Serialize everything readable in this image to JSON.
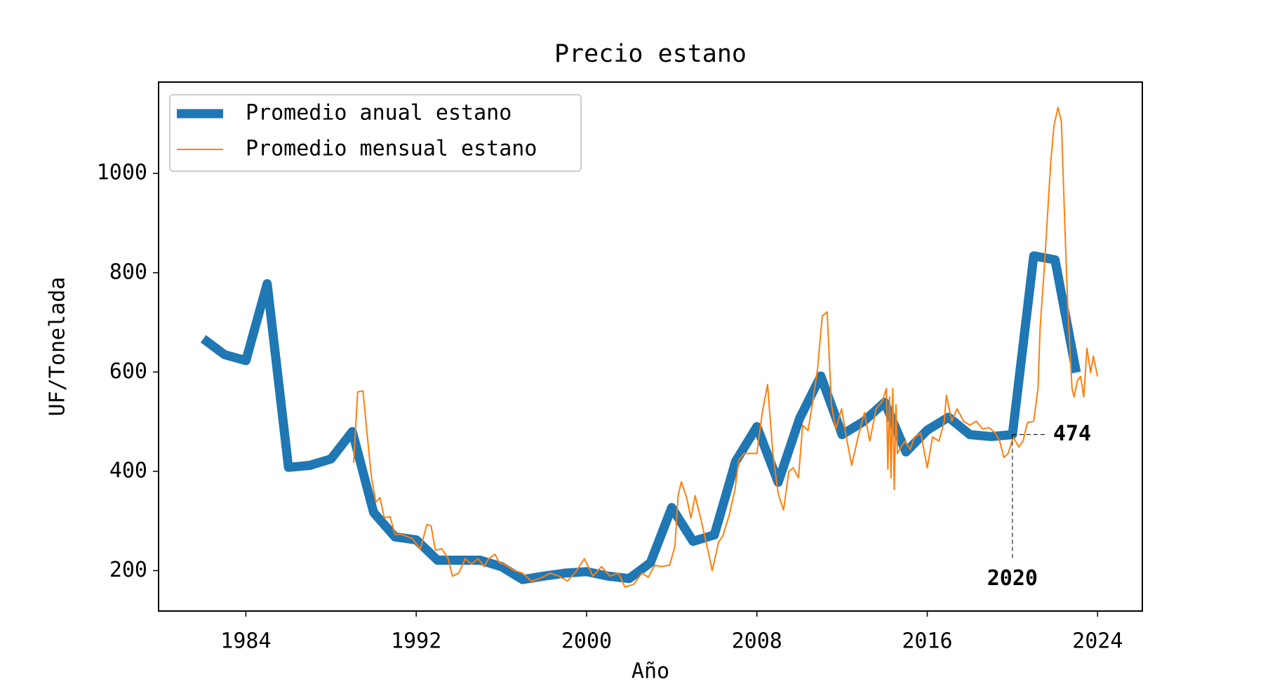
{
  "chart_data": {
    "type": "line",
    "title": "Precio estano",
    "x_label": "Año",
    "y_label": "UF/Tonelada",
    "xlim": [
      1979.9,
      2026.1
    ],
    "ylim": [
      118.6,
      1184
    ],
    "xticks": [
      1984,
      1992,
      2000,
      2008,
      2016,
      2024
    ],
    "yticks": [
      200,
      400,
      600,
      800,
      1000
    ],
    "legend": "upper left",
    "series": [
      {
        "name": "Promedio anual estano",
        "color": "#1f77b4",
        "linewidth": 13,
        "x": [
          1982,
          1983,
          1984,
          1985,
          1986,
          1987,
          1988,
          1989,
          1990,
          1991,
          1992,
          1993,
          1994,
          1995,
          1996,
          1997,
          1998,
          1999,
          2000,
          2001,
          2002,
          2003,
          2004,
          2005,
          2006,
          2007,
          2008,
          2009,
          2010,
          2011,
          2012,
          2013,
          2014,
          2015,
          2016,
          2017,
          2018,
          2019,
          2020,
          2021,
          2022,
          2023
        ],
        "values": [
          667,
          635,
          623,
          778,
          408,
          412,
          425,
          480,
          317,
          268,
          262,
          221,
          221,
          221,
          208,
          182,
          189,
          195,
          198,
          189,
          184,
          216,
          327,
          259,
          272,
          420,
          490,
          378,
          506,
          592,
          474,
          500,
          539,
          439,
          483,
          509,
          474,
          470,
          474,
          834,
          826,
          599
        ]
      },
      {
        "name": "Promedio mensual estano",
        "color": "#ff7f0e",
        "linewidth": 2,
        "x": [
          1989.06,
          1989.25,
          1989.5,
          1989.67,
          1989.9,
          1990.1,
          1990.3,
          1990.5,
          1990.77,
          1991.0,
          1991.3,
          1991.8,
          1992.2,
          1992.5,
          1992.7,
          1992.9,
          1993.2,
          1993.5,
          1993.7,
          1994.0,
          1994.3,
          1994.6,
          1994.9,
          1995.2,
          1995.4,
          1995.7,
          1995.9,
          1996.2,
          1996.6,
          1997.0,
          1997.4,
          1997.8,
          1998.3,
          1998.7,
          1999.1,
          1999.5,
          1999.9,
          2000.3,
          2000.7,
          2001.1,
          2001.5,
          2001.8,
          2002.2,
          2002.6,
          2002.9,
          2003.2,
          2003.5,
          2003.9,
          2004.15,
          2004.3,
          2004.45,
          2004.7,
          2004.9,
          2005.1,
          2005.4,
          2005.7,
          2005.9,
          2006.2,
          2006.4,
          2006.7,
          2006.97,
          2007.15,
          2007.4,
          2007.7,
          2008.0,
          2008.25,
          2008.5,
          2008.75,
          2009.0,
          2009.25,
          2009.5,
          2009.7,
          2009.95,
          2010.15,
          2010.4,
          2010.6,
          2010.85,
          2011.07,
          2011.3,
          2011.5,
          2011.7,
          2011.98,
          2012.2,
          2012.45,
          2012.75,
          2013.05,
          2013.3,
          2013.6,
          2013.9,
          2014.08,
          2014.15,
          2014.23,
          2014.3,
          2014.38,
          2014.45,
          2014.53,
          2014.6,
          2014.7,
          2014.95,
          2015.2,
          2015.4,
          2015.7,
          2016.0,
          2016.25,
          2016.55,
          2016.8,
          2016.9,
          2017.15,
          2017.4,
          2017.7,
          2018.0,
          2018.3,
          2018.6,
          2018.9,
          2019.2,
          2019.4,
          2019.6,
          2019.8,
          2020.04,
          2020.3,
          2020.5,
          2020.7,
          2021.0,
          2021.2,
          2021.3,
          2021.5,
          2021.65,
          2021.8,
          2021.95,
          2022.14,
          2022.3,
          2022.45,
          2022.6,
          2022.8,
          2022.9,
          2023.05,
          2023.2,
          2023.35,
          2023.5,
          2023.67,
          2023.8,
          2024.0
        ],
        "values": [
          417,
          560,
          562,
          485,
          387,
          338,
          347,
          306,
          309,
          273,
          273,
          265,
          244,
          293,
          290,
          241,
          244,
          224,
          189,
          195,
          224,
          213,
          224,
          208,
          224,
          233,
          216,
          211,
          200,
          195,
          179,
          184,
          195,
          189,
          179,
          198,
          224,
          189,
          208,
          189,
          195,
          167,
          172,
          195,
          187,
          211,
          208,
          211,
          249,
          351,
          379,
          347,
          306,
          351,
          298,
          241,
          200,
          257,
          270,
          312,
          363,
          423,
          436,
          436,
          436,
          518,
          575,
          436,
          355,
          322,
          400,
          407,
          387,
          493,
          482,
          534,
          607,
          713,
          721,
          534,
          485,
          526,
          469,
          412,
          469,
          518,
          461,
          526,
          542,
          567,
          404,
          550,
          387,
          567,
          363,
          534,
          436,
          444,
          461,
          444,
          469,
          477,
          407,
          469,
          461,
          501,
          553,
          501,
          526,
          501,
          493,
          501,
          485,
          488,
          477,
          461,
          428,
          436,
          469,
          449,
          461,
          498,
          501,
          566,
          689,
          811,
          917,
          1022,
          1096,
          1133,
          1104,
          909,
          729,
          566,
          550,
          583,
          591,
          550,
          648,
          599,
          632,
          591
        ]
      }
    ],
    "annotation": {
      "x": 2020,
      "y": 474
    }
  }
}
